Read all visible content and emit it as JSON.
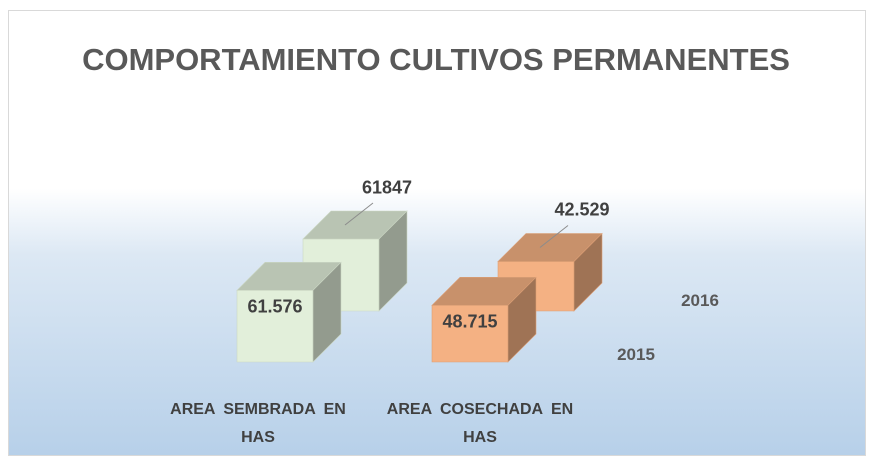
{
  "chart_data": {
    "type": "bar",
    "title": "COMPORTAMIENTO CULTIVOS PERMANENTES",
    "categories": [
      "AREA SEMBRADA EN HAS",
      "AREA COSECHADA EN HAS"
    ],
    "colors": [
      "#e2efda",
      "#f4b183"
    ],
    "series": [
      {
        "name": "2015",
        "values": [
          61576,
          48715
        ],
        "value_labels": [
          "61.576",
          "48.715"
        ]
      },
      {
        "name": "2016",
        "values": [
          61847,
          42529
        ],
        "value_labels": [
          "61847",
          "42.529"
        ]
      }
    ]
  }
}
